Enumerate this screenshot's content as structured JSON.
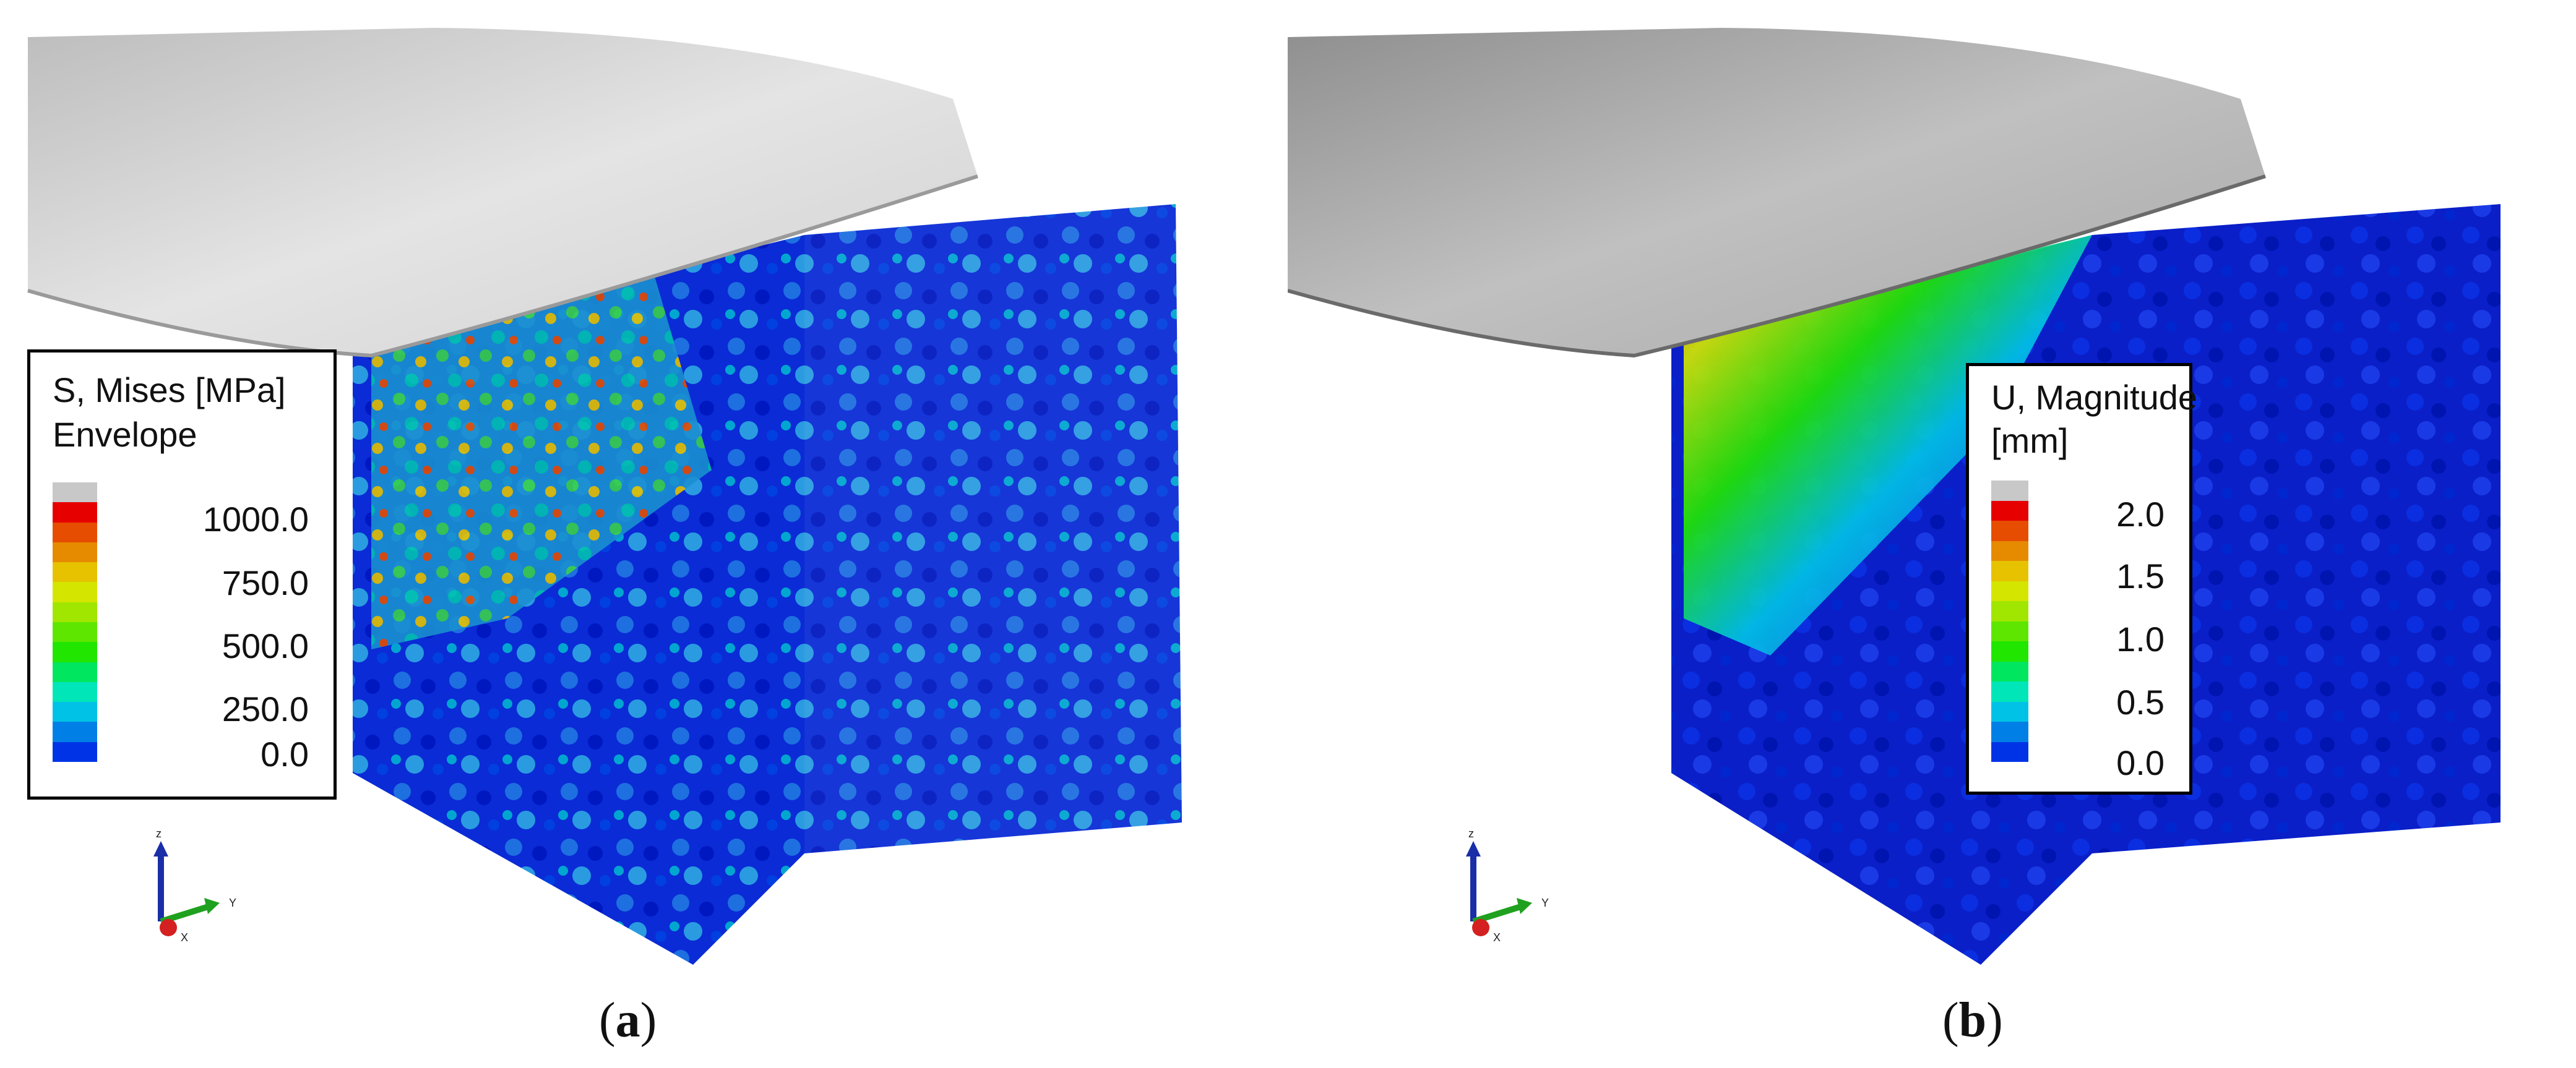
{
  "panels": [
    {
      "id": "a",
      "caption": {
        "open": "(",
        "letter": "a",
        "close": ")"
      },
      "legend": {
        "title_lines": [
          "S, Mises [MPa]",
          "Envelope"
        ],
        "tick_labels": [
          "1000.0",
          "750.0",
          "500.0",
          "250.0",
          "0.0"
        ],
        "colors": [
          "#c8c8c8",
          "#e60000",
          "#e64d00",
          "#e68a00",
          "#e6c200",
          "#d4e600",
          "#a0e600",
          "#5ee600",
          "#20e600",
          "#00e65e",
          "#00e6b8",
          "#00c2e6",
          "#0080e6",
          "#0033e6"
        ]
      },
      "axes_triad": {
        "z": "z",
        "y": "Y",
        "x": "X"
      }
    },
    {
      "id": "b",
      "caption": {
        "open": "(",
        "letter": "b",
        "close": ")"
      },
      "legend": {
        "title_lines": [
          "U, Magnitude",
          "[mm]"
        ],
        "tick_labels": [
          "2.0",
          "1.5",
          "1.0",
          "0.5",
          "0.0"
        ],
        "colors": [
          "#c8c8c8",
          "#e60000",
          "#e64d00",
          "#e68a00",
          "#e6c200",
          "#d4e600",
          "#a0e600",
          "#5ee600",
          "#20e600",
          "#00e65e",
          "#00e6b8",
          "#00c2e6",
          "#0080e6",
          "#0033e6"
        ]
      },
      "axes_triad": {
        "z": "z",
        "y": "Y",
        "x": "X"
      }
    }
  ]
}
